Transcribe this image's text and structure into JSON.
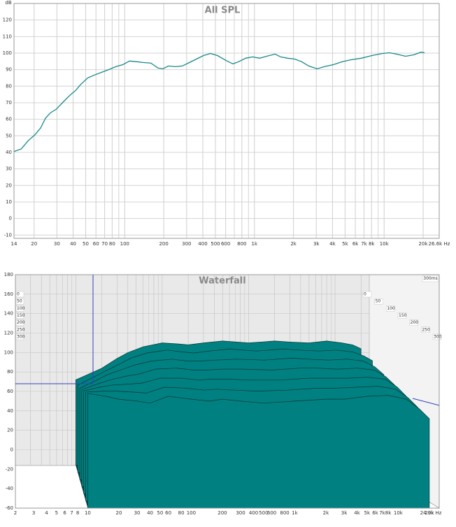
{
  "chart_data": [
    {
      "type": "line",
      "title": "All SPL",
      "y_label": "dB",
      "log_x": true,
      "grid": true,
      "color": "#18888a",
      "xlim": [
        14,
        26600
      ],
      "ylim": [
        -12,
        130
      ],
      "xticks": [
        14,
        20,
        30,
        40,
        50,
        60,
        70,
        80,
        100,
        200,
        300,
        400,
        500,
        600,
        800,
        {
          "value": 1000,
          "label": "1k"
        },
        {
          "value": 2000,
          "label": "2k"
        },
        {
          "value": 3000,
          "label": "3k"
        },
        {
          "value": 4000,
          "label": "4k"
        },
        {
          "value": 5000,
          "label": "5k"
        },
        {
          "value": 6000,
          "label": "6k"
        },
        {
          "value": 7000,
          "label": "7k"
        },
        {
          "value": 8000,
          "label": "8k"
        },
        {
          "value": 10000,
          "label": "10k"
        },
        {
          "value": 20000,
          "label": "20k"
        },
        {
          "value": 26600,
          "label": "26.6k Hz"
        }
      ],
      "x_minor_grid": [
        90,
        700,
        900,
        9000
      ],
      "yticks": [
        -10,
        0,
        10,
        20,
        30,
        40,
        50,
        60,
        70,
        80,
        90,
        100,
        110,
        120
      ],
      "x": [
        14,
        15.9,
        18,
        20.3,
        22.5,
        24.5,
        26.8,
        29.6,
        33.5,
        37.9,
        41.9,
        45.7,
        51.8,
        58.7,
        66.5,
        75.3,
        85.3,
        96.6,
        109,
        124,
        140,
        159,
        180,
        197,
        217,
        246,
        278,
        315,
        357,
        405,
        458,
        519,
        603,
        683,
        755,
        855,
        969,
        1097,
        1242,
        1442,
        1594,
        1806,
        2045,
        2316,
        2623,
        3046,
        3452,
        4059,
        4771,
        5541,
        6680,
        8050,
        9705,
        10990,
        12450,
        14640,
        17000,
        19260,
        20500
      ],
      "values": [
        40.5,
        42,
        47,
        50.6,
        54.8,
        60.7,
        64,
        66,
        70.4,
        74.6,
        77.5,
        81,
        85,
        86.8,
        88.4,
        90,
        91.8,
        93,
        95.2,
        94.8,
        94.3,
        94,
        91,
        90.5,
        92.2,
        91.8,
        92.2,
        94.3,
        96.4,
        98.5,
        99.8,
        98.5,
        95.6,
        93.5,
        94.8,
        96.9,
        97.7,
        96.9,
        98.1,
        99.4,
        97.7,
        96.9,
        96.4,
        94.8,
        92.2,
        90.5,
        91.8,
        93,
        94.8,
        96,
        96.9,
        98.5,
        99.8,
        100.2,
        99.4,
        98.1,
        99,
        100.6,
        100.2
      ]
    },
    {
      "type": "waterfall",
      "title": "Waterfall",
      "time_range_label": "300ms",
      "log_x": true,
      "grid": true,
      "fill_color": "#008080",
      "edge_color": "#0b3535",
      "xlim": [
        2,
        24900
      ],
      "ylim": [
        -60,
        180
      ],
      "zlim": [
        0,
        300
      ],
      "xticks": [
        2,
        3,
        4,
        5,
        6,
        7,
        8,
        10,
        20,
        30,
        40,
        50,
        60,
        80,
        100,
        200,
        300,
        400,
        500,
        600,
        800,
        {
          "value": 1000,
          "label": "1k"
        },
        {
          "value": 2000,
          "label": "2k"
        },
        {
          "value": 3000,
          "label": "3k"
        },
        {
          "value": 4000,
          "label": "4k"
        },
        {
          "value": 5000,
          "label": "5k"
        },
        {
          "value": 6000,
          "label": "6k"
        },
        {
          "value": 7000,
          "label": "7k"
        },
        {
          "value": 8000,
          "label": "8k"
        },
        {
          "value": 10000,
          "label": "10k"
        },
        {
          "value": 20000,
          "label": "20k"
        },
        {
          "value": 24900,
          "label": "24.9k Hz"
        }
      ],
      "x_minor_grid": [
        9,
        70,
        90,
        700,
        900,
        9000
      ],
      "yticks": [
        -60,
        -40,
        -20,
        0,
        20,
        40,
        60,
        80,
        100,
        120,
        140,
        160,
        180
      ],
      "zticks": [
        0,
        50,
        100,
        150,
        200,
        250,
        300
      ],
      "freqs": [
        10,
        15,
        20,
        30,
        40,
        60,
        100,
        150,
        200,
        300,
        500,
        1000,
        2000,
        3000,
        5000,
        8000,
        12000,
        16000,
        20000
      ],
      "slices": [
        {
          "time": 0,
          "values": [
            28,
            35,
            40,
            50,
            56,
            62,
            66,
            65,
            64,
            66,
            68,
            66,
            68,
            67,
            66,
            68,
            66,
            64,
            60
          ]
        },
        {
          "time": 50,
          "values": [
            30,
            38,
            44,
            52,
            58,
            63,
            66,
            64,
            63,
            65,
            67,
            65,
            67,
            66,
            65,
            66,
            64,
            60,
            55
          ]
        },
        {
          "time": 100,
          "values": [
            34,
            42,
            48,
            54,
            58,
            62,
            64,
            62,
            62,
            63,
            64,
            63,
            65,
            64,
            63,
            64,
            62,
            56,
            48
          ]
        },
        {
          "time": 150,
          "values": [
            40,
            46,
            50,
            54,
            56,
            61,
            62,
            60,
            60,
            61,
            61,
            60,
            62,
            62,
            61,
            62,
            60,
            53,
            44
          ]
        },
        {
          "time": 200,
          "values": [
            46,
            50,
            52,
            53,
            54,
            59,
            59,
            57,
            58,
            58,
            57,
            57,
            59,
            59,
            59,
            60,
            58,
            50,
            40
          ]
        },
        {
          "time": 250,
          "values": [
            52,
            53,
            53,
            52,
            51,
            57,
            56,
            54,
            55,
            54,
            53,
            54,
            56,
            56,
            57,
            58,
            55,
            46,
            36
          ]
        },
        {
          "time": 300,
          "values": [
            58,
            55,
            52,
            50,
            48,
            55,
            52,
            50,
            52,
            50,
            48,
            50,
            52,
            52,
            55,
            56,
            52,
            42,
            32
          ]
        }
      ]
    }
  ]
}
